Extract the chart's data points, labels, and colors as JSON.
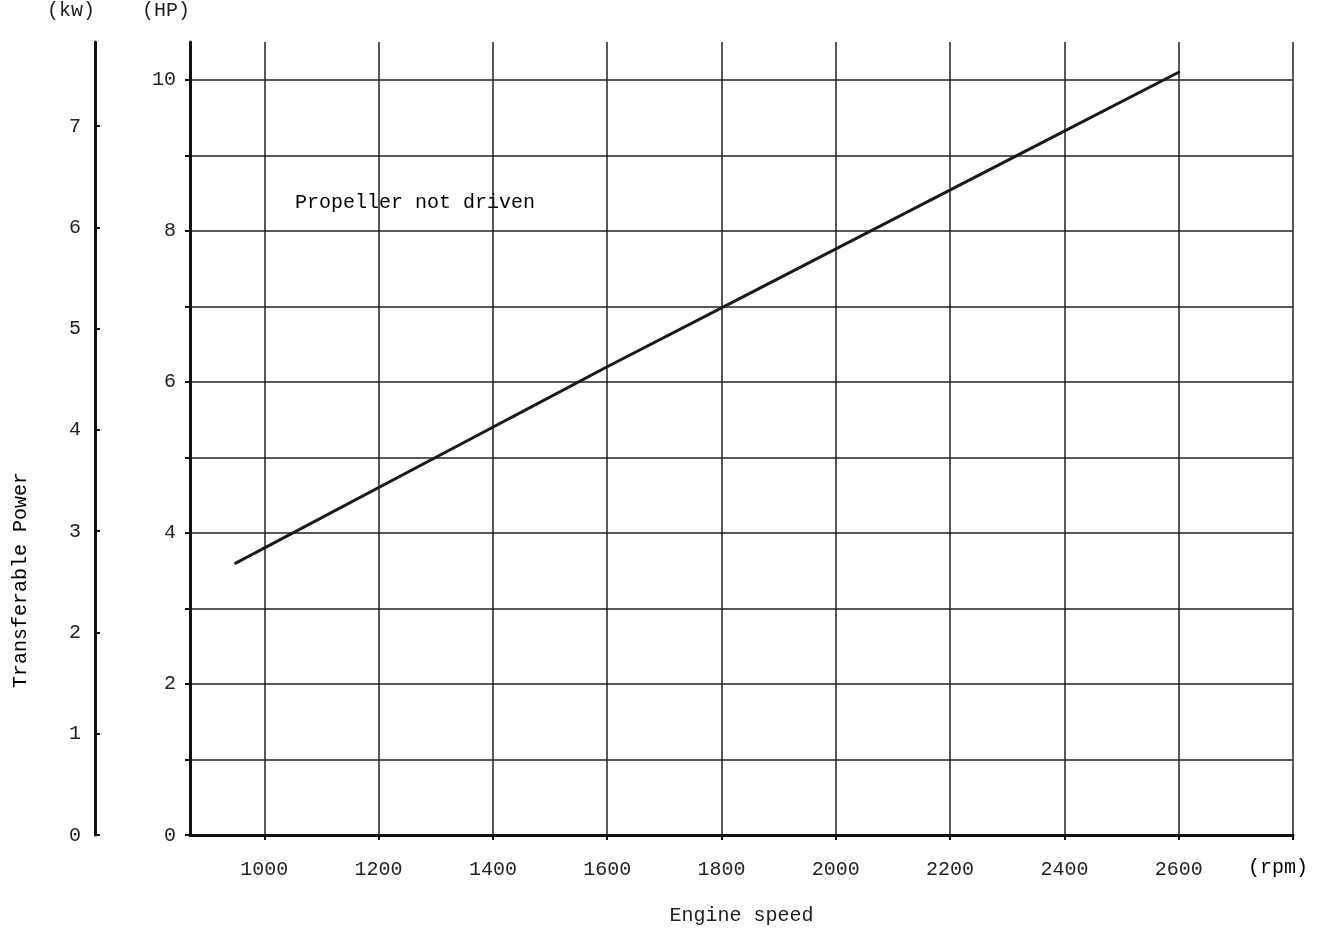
{
  "chart_data": {
    "type": "line",
    "xlabel": "Engine speed",
    "ylabel": "(HP)",
    "y2label": "(kw)",
    "annotations": [
      "Transferable Power",
      "(rpm)",
      "Propeller not driven"
    ],
    "x": [
      950,
      1600,
      2600
    ],
    "series": [
      {
        "color": "#1a1a1a",
        "values": [
          3.6,
          6.2,
          10.1
        ]
      }
    ],
    "xlim": [
      870,
      2800
    ],
    "xticks": [
      1000,
      1200,
      1400,
      1600,
      1800,
      2000,
      2200,
      2400,
      2600,
      {
        "value": 2800,
        "label": null
      }
    ],
    "ylim": [
      0,
      10.5
    ],
    "yticks": [
      0,
      {
        "value": 1,
        "label": null
      },
      2,
      {
        "value": 3,
        "label": null
      },
      4,
      {
        "value": 5,
        "label": null
      },
      6,
      {
        "value": 7,
        "label": null
      },
      8,
      {
        "value": 9,
        "label": null
      },
      10
    ],
    "y2lim": [
      0,
      7.83
    ],
    "y2ticks": [
      0,
      1,
      2,
      3,
      4,
      5,
      6,
      7
    ],
    "grid": true,
    "marker": "none",
    "line_style": "solid"
  }
}
